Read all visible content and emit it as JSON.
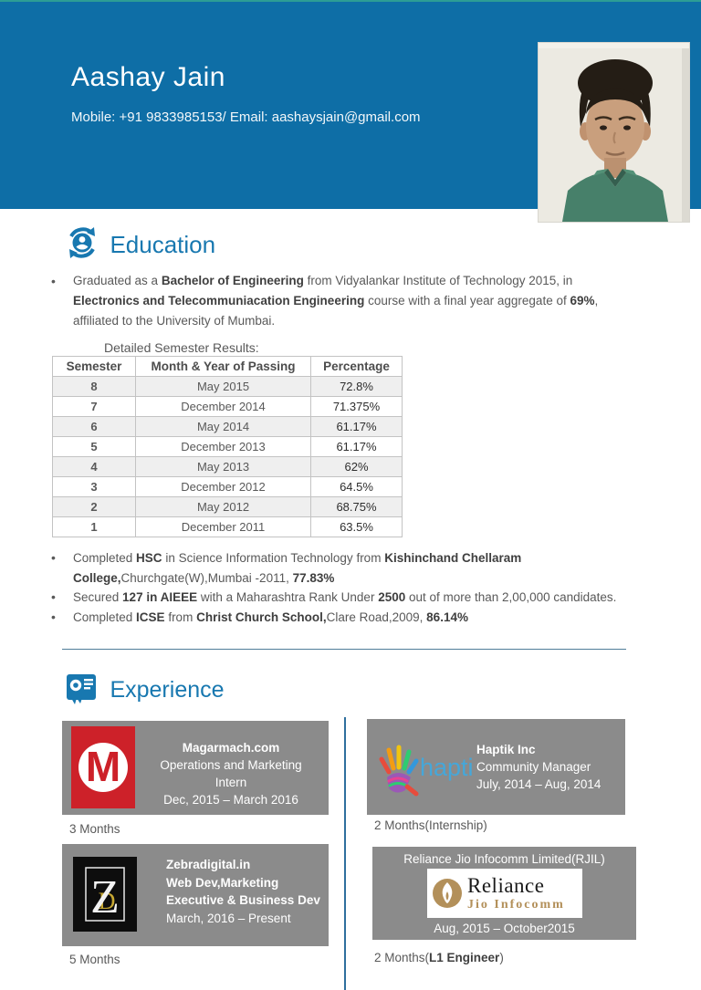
{
  "header": {
    "name": "Aashay Jain",
    "contact": "Mobile: +91 9833985153/ Email: aashaysjain@gmail.com",
    "photo": "portrait-photo"
  },
  "education": {
    "heading": "Education",
    "icon": "education-sync-person-icon",
    "intro_bullet": [
      {
        "t": "Graduated as a "
      },
      {
        "t": "Bachelor of Engineering",
        "b": true
      },
      {
        "t": " from Vidyalankar Institute of Technology 2015, in "
      },
      {
        "t": "Electronics and Telecommuniacation Engineering",
        "b": true
      },
      {
        "t": " course with a final year aggregate of "
      },
      {
        "t": "69%",
        "b": true
      },
      {
        "t": ", affiliated to the University of Mumbai."
      }
    ],
    "table_caption": "Detailed Semester Results:",
    "table": {
      "headers": [
        "Semester",
        "Month & Year of Passing",
        "Percentage"
      ],
      "rows": [
        [
          "8",
          "May 2015",
          "72.8%"
        ],
        [
          "7",
          "December 2014",
          "71.375%"
        ],
        [
          "6",
          "May 2014",
          "61.17%"
        ],
        [
          "5",
          "December 2013",
          "61.17%"
        ],
        [
          "4",
          "May 2013",
          "62%"
        ],
        [
          "3",
          "December 2012",
          "64.5%"
        ],
        [
          "2",
          "May 2012",
          "68.75%"
        ],
        [
          "1",
          "December 2011",
          "63.5%"
        ]
      ]
    },
    "bullets": [
      [
        {
          "t": "Completed "
        },
        {
          "t": "HSC",
          "b": true
        },
        {
          "t": " in Science Information Technology from "
        },
        {
          "t": "Kishinchand Chellaram College,",
          "b": true
        },
        {
          "t": "Churchgate(W),Mumbai -2011, "
        },
        {
          "t": "77.83%",
          "b": true
        }
      ],
      [
        {
          "t": "Secured "
        },
        {
          "t": "127 in AIEEE",
          "b": true
        },
        {
          "t": " with a Maharashtra Rank Under "
        },
        {
          "t": "2500",
          "b": true
        },
        {
          "t": " out of more than 2,00,000 candidates."
        }
      ],
      [
        {
          "t": "Completed "
        },
        {
          "t": "ICSE",
          "b": true
        },
        {
          "t": " from "
        },
        {
          "t": "Christ Church School,",
          "b": true
        },
        {
          "t": "Clare Road,2009, "
        },
        {
          "t": "86.14%",
          "b": true
        }
      ]
    ]
  },
  "experience": {
    "heading": "Experience",
    "icon": "experience-badge-icon",
    "cards": [
      {
        "logo": "magarmach-logo",
        "company": "Magarmach.com",
        "role_line1": "Operations and Marketing",
        "role_line2": "Intern",
        "period": "Dec, 2015 – March 2016",
        "duration": "3 Months"
      },
      {
        "logo": "haptik-logo",
        "logo_word": "haptik",
        "company": "Haptik Inc",
        "role_line1": "Community Manager",
        "period": "July, 2014 – Aug, 2014",
        "duration": "2 Months(Internship)"
      },
      {
        "logo": "zebradigital-logo",
        "company": "Zebradigital.in",
        "role_line1": "Web Dev,Marketing",
        "role_line2": "Executive & Business Dev",
        "period": "March, 2016 – Present",
        "duration": "5 Months"
      },
      {
        "logo": "reliance-logo",
        "company": "Reliance Jio Infocomm Limited(RJIL)",
        "logo_text": "Reliance",
        "logo_subtext": "Jio Infocomm",
        "period": "Aug, 2015 – October2015",
        "duration_segments": [
          {
            "t": "2 Months("
          },
          {
            "t": "L1 Engineer",
            "b": true
          },
          {
            "t": ")"
          }
        ]
      }
    ]
  },
  "colors": {
    "band_blue": "#0e6ea6",
    "heading_blue": "#1878b0",
    "body_gray": "#595959",
    "card_gray": "#8b8b8b",
    "magarmach_red": "#cd2129",
    "reliance_gold": "#b3905a",
    "haptik_blue": "#45a7d9",
    "top_line_teal": "#2c9d95"
  }
}
